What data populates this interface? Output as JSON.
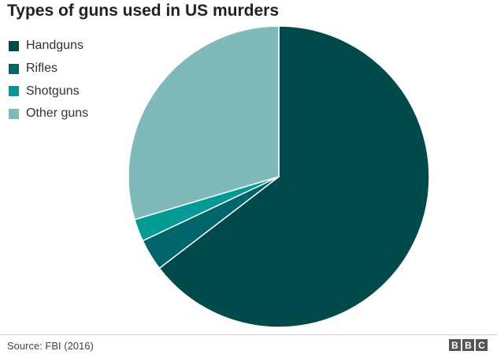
{
  "chart_data": {
    "type": "pie",
    "title": "Types of guns used in US murders",
    "categories": [
      "Handguns",
      "Rifles",
      "Shotguns",
      "Other guns"
    ],
    "values": [
      64.6,
      3.4,
      2.4,
      29.6
    ],
    "colors": [
      "#004a4b",
      "#00656a",
      "#009b94",
      "#7fb9b9"
    ],
    "legend_position": "top-left"
  },
  "footer": {
    "source": "Source: FBI (2016)",
    "logo": [
      "B",
      "B",
      "C"
    ]
  }
}
